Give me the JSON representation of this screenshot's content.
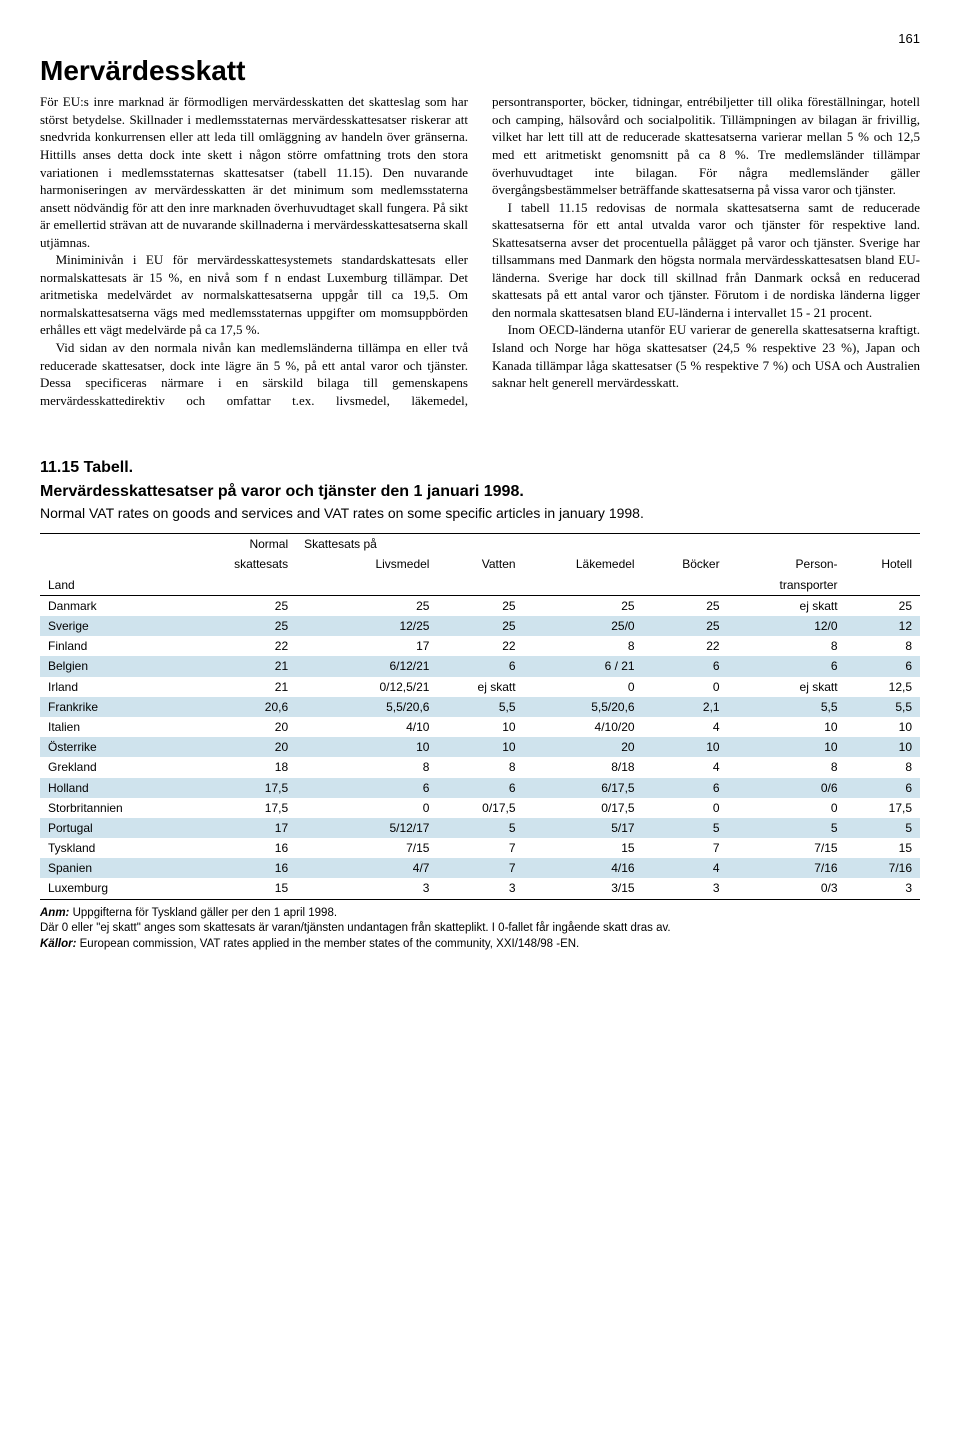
{
  "page_number": "161",
  "title": "Mervärdesskatt",
  "paragraphs": [
    "För EU:s inre marknad är förmodligen mervärdesskatten det skatteslag som har störst betydelse. Skillnader i medlemsstaternas mervärdesskattesatser riskerar att snedvrida konkurrensen eller att leda till omläggning av handeln över gränserna. Hittills anses detta dock inte skett i någon större omfattning trots den stora variationen i medlemsstaternas skattesatser (tabell 11.15). Den nuvarande harmoniseringen av mervärdesskatten är det minimum som medlemsstaterna ansett nödvändig för att den inre marknaden överhuvudtaget skall fungera. På sikt är emellertid strävan att de nuvarande skillnaderna i mervärdesskattesatserna skall utjämnas.",
    "Miniminivån i EU för mervärdesskattesystemets standardskattesats eller normalskattesats är 15 %, en nivå som f n endast Luxemburg tillämpar. Det aritmetiska medelvärdet av normalskattesatserna uppgår till ca 19,5. Om normalskattesatserna vägs med medlemsstaternas uppgifter om momsuppbörden erhålles ett vägt medelvärde på ca 17,5 %.",
    "Vid sidan av den normala nivån kan medlemsländerna tillämpa en eller två reducerade skattesatser, dock inte lägre än 5 %, på ett antal varor och tjänster. Dessa specificeras närmare i en särskild bilaga till gemenskapens mervärdesskattedirektiv och omfattar t.ex. livsmedel, läkemedel, persontransporter, böcker, tidningar, entrébiljetter till olika föreställningar, hotell och camping, hälsovård och socialpolitik. Tillämpningen av bilagan är frivillig, vilket har lett till att de reducerade skattesatserna varierar mellan 5 % och 12,5 med ett aritmetiskt genomsnitt på ca 8 %. Tre medlemsländer tillämpar överhuvudtaget inte bilagan. För några medlemsländer gäller övergångsbestämmelser beträffande skattesatserna på vissa varor och tjänster.",
    "I tabell 11.15 redovisas de normala skattesatserna samt de reducerade skattesatserna för ett antal utvalda varor och tjänster för respektive land. Skattesatserna avser det procentuella pålägget på varor och tjänster. Sverige har tillsammans med Danmark den högsta normala mervärdesskattesatsen bland EU-länderna. Sverige har dock till skillnad från Danmark också en reducerad skattesats på ett antal varor och tjänster. Förutom i de nordiska länderna ligger den normala skattesatsen bland EU-länderna i intervallet 15 - 21 procent.",
    "Inom OECD-länderna utanför EU varierar de generella skattesatserna kraftigt. Island och Norge har höga skattesatser (24,5 % respektive 23 %), Japan och Kanada tillämpar låga skattesatser (5 % respektive 7 %) och USA och Australien saknar helt generell mervärdesskatt."
  ],
  "table": {
    "heading_line1": "11.15 Tabell.",
    "heading_line2": "Mervärdesskattesatser på varor och tjänster den 1 januari 1998.",
    "subheading": "Normal VAT rates on goods and services and VAT rates on some specific articles in january 1998.",
    "header": {
      "land": "Land",
      "normal": "Normal",
      "skattesats": "skattesats",
      "skattesats_pa": "Skattesats på",
      "livsmedel": "Livsmedel",
      "vatten": "Vatten",
      "lakemedel": "Läkemedel",
      "bocker": "Böcker",
      "person": "Person-",
      "transporter": "transporter",
      "hotell": "Hotell"
    },
    "rows": [
      {
        "land": "Danmark",
        "normal": "25",
        "livsmedel": "25",
        "vatten": "25",
        "lakemedel": "25",
        "bocker": "25",
        "person": "ej skatt",
        "hotell": "25"
      },
      {
        "land": "Sverige",
        "normal": "25",
        "livsmedel": "12/25",
        "vatten": "25",
        "lakemedel": "25/0",
        "bocker": "25",
        "person": "12/0",
        "hotell": "12"
      },
      {
        "land": "Finland",
        "normal": "22",
        "livsmedel": "17",
        "vatten": "22",
        "lakemedel": "8",
        "bocker": "22",
        "person": "8",
        "hotell": "8"
      },
      {
        "land": "Belgien",
        "normal": "21",
        "livsmedel": "6/12/21",
        "vatten": "6",
        "lakemedel": "6 / 21",
        "bocker": "6",
        "person": "6",
        "hotell": "6"
      },
      {
        "land": "Irland",
        "normal": "21",
        "livsmedel": "0/12,5/21",
        "vatten": "ej skatt",
        "lakemedel": "0",
        "bocker": "0",
        "person": "ej skatt",
        "hotell": "12,5"
      },
      {
        "land": "Frankrike",
        "normal": "20,6",
        "livsmedel": "5,5/20,6",
        "vatten": "5,5",
        "lakemedel": "5,5/20,6",
        "bocker": "2,1",
        "person": "5,5",
        "hotell": "5,5"
      },
      {
        "land": "Italien",
        "normal": "20",
        "livsmedel": "4/10",
        "vatten": "10",
        "lakemedel": "4/10/20",
        "bocker": "4",
        "person": "10",
        "hotell": "10"
      },
      {
        "land": "Österrike",
        "normal": "20",
        "livsmedel": "10",
        "vatten": "10",
        "lakemedel": "20",
        "bocker": "10",
        "person": "10",
        "hotell": "10"
      },
      {
        "land": "Grekland",
        "normal": "18",
        "livsmedel": "8",
        "vatten": "8",
        "lakemedel": "8/18",
        "bocker": "4",
        "person": "8",
        "hotell": "8"
      },
      {
        "land": "Holland",
        "normal": "17,5",
        "livsmedel": "6",
        "vatten": "6",
        "lakemedel": "6/17,5",
        "bocker": "6",
        "person": "0/6",
        "hotell": "6"
      },
      {
        "land": "Storbritannien",
        "normal": "17,5",
        "livsmedel": "0",
        "vatten": "0/17,5",
        "lakemedel": "0/17,5",
        "bocker": "0",
        "person": "0",
        "hotell": "17,5"
      },
      {
        "land": "Portugal",
        "normal": "17",
        "livsmedel": "5/12/17",
        "vatten": "5",
        "lakemedel": "5/17",
        "bocker": "5",
        "person": "5",
        "hotell": "5"
      },
      {
        "land": "Tyskland",
        "normal": "16",
        "livsmedel": "7/15",
        "vatten": "7",
        "lakemedel": "15",
        "bocker": "7",
        "person": "7/15",
        "hotell": "15"
      },
      {
        "land": "Spanien",
        "normal": "16",
        "livsmedel": "4/7",
        "vatten": "7",
        "lakemedel": "4/16",
        "bocker": "4",
        "person": "7/16",
        "hotell": "7/16"
      },
      {
        "land": "Luxemburg",
        "normal": "15",
        "livsmedel": "3",
        "vatten": "3",
        "lakemedel": "3/15",
        "bocker": "3",
        "person": "0/3",
        "hotell": "3"
      }
    ],
    "shade_rows": [
      1,
      3,
      5,
      7,
      9,
      11,
      13
    ],
    "footnotes": {
      "anm_label": "Anm:",
      "anm_text": "Uppgifterna för Tyskland gäller per den 1 april 1998.",
      "note2": "Där 0 eller \"ej skatt\" anges som skattesats är varan/tjänsten undantagen från skatteplikt. I 0-fallet får ingående skatt dras av.",
      "kallor_label": "Källor:",
      "kallor_text": "European commission, VAT rates applied in the member states of the community, XXI/148/98 -EN."
    }
  }
}
